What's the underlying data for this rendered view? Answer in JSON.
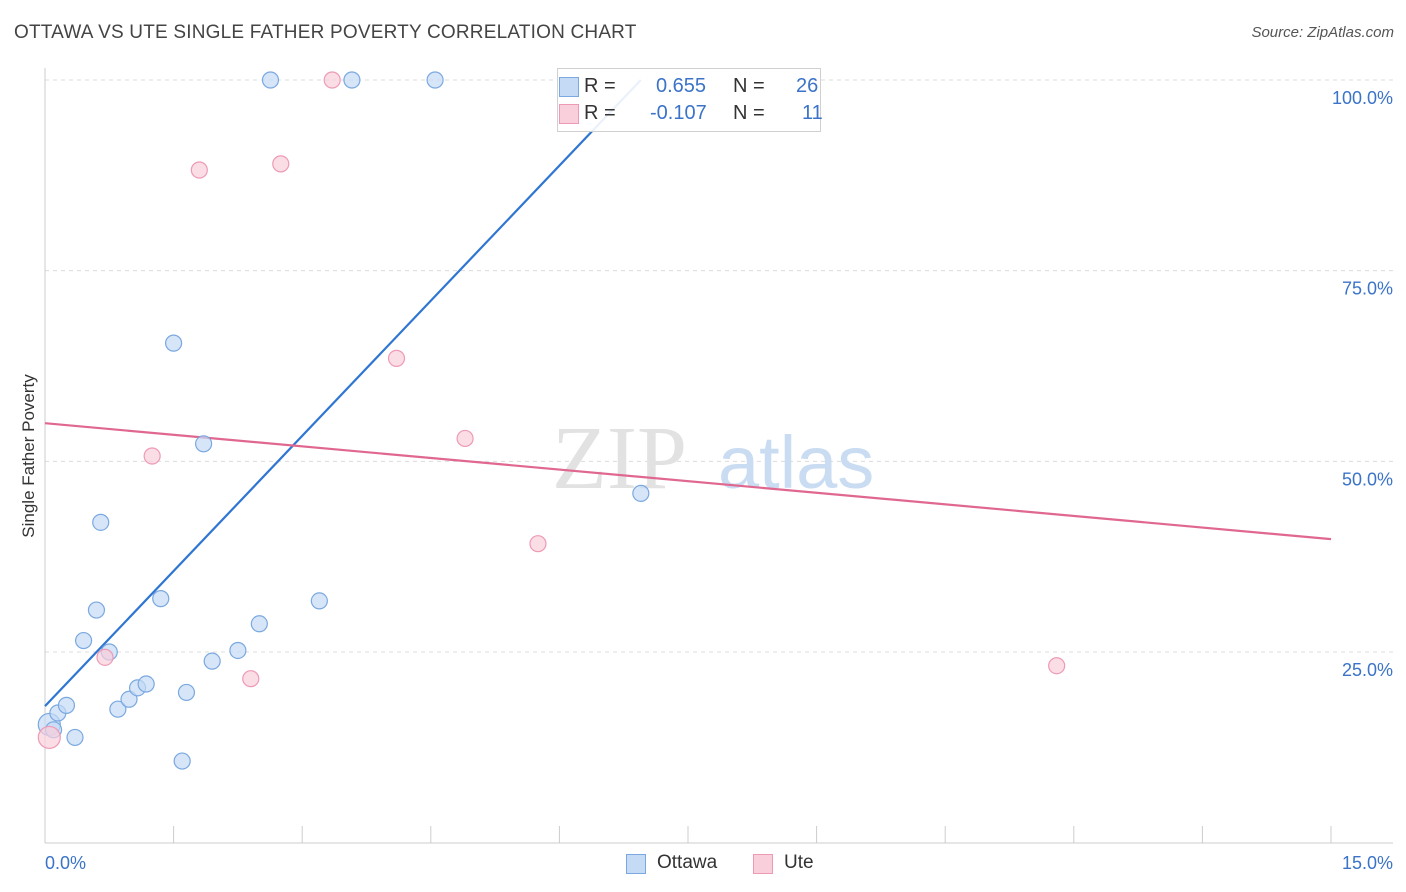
{
  "title": "OTTAWA VS UTE SINGLE FATHER POVERTY CORRELATION CHART",
  "source": "Source: ZipAtlas.com",
  "watermark": {
    "zip": "ZIP",
    "atlas": "atlas"
  },
  "colors": {
    "ottawa_fill": "#c5daf5",
    "ottawa_stroke": "#7aa8e0",
    "ottawa_line": "#2f76d2",
    "ute_fill": "#f9cfdc",
    "ute_stroke": "#ee9ab5",
    "ute_line": "#e0678f",
    "axis_text": "#3b73c8",
    "grid": "#dcdcdc"
  },
  "legend": {
    "rows": [
      {
        "r_label": "R =",
        "r_value": "0.655",
        "n_label": "N =",
        "n_value": "26"
      },
      {
        "r_label": "R =",
        "r_value": "-0.107",
        "n_label": "N =",
        "n_value": "11"
      }
    ]
  },
  "bottom_legend": {
    "ottawa": "Ottawa",
    "ute": "Ute"
  },
  "chart_data": {
    "type": "scatter",
    "title": "OTTAWA VS UTE SINGLE FATHER POVERTY CORRELATION CHART",
    "xlabel": "",
    "ylabel": "Single Father Poverty",
    "xlim": [
      0,
      15
    ],
    "ylim": [
      0,
      105
    ],
    "x_tick_labels": [
      "0.0%",
      "15.0%"
    ],
    "y_ticks": [
      25,
      50,
      75,
      100
    ],
    "y_tick_labels": [
      "25.0%",
      "50.0%",
      "75.0%",
      "100.0%"
    ],
    "grid": true,
    "legend_position": "top-center",
    "series": [
      {
        "name": "Ottawa",
        "points": [
          [
            0.05,
            15.5
          ],
          [
            0.1,
            14.8
          ],
          [
            0.15,
            17.0
          ],
          [
            0.25,
            18.0
          ],
          [
            0.35,
            13.8
          ],
          [
            0.45,
            26.5
          ],
          [
            0.6,
            30.5
          ],
          [
            0.65,
            42.0
          ],
          [
            0.75,
            25.0
          ],
          [
            0.85,
            17.5
          ],
          [
            0.98,
            18.8
          ],
          [
            1.08,
            20.3
          ],
          [
            1.18,
            20.8
          ],
          [
            1.35,
            32.0
          ],
          [
            1.5,
            65.5
          ],
          [
            1.6,
            10.7
          ],
          [
            1.65,
            19.7
          ],
          [
            1.85,
            52.3
          ],
          [
            1.95,
            23.8
          ],
          [
            2.25,
            25.2
          ],
          [
            2.5,
            28.7
          ],
          [
            2.63,
            100.0
          ],
          [
            3.2,
            31.7
          ],
          [
            3.58,
            100.0
          ],
          [
            4.55,
            100.0
          ],
          [
            6.95,
            45.8
          ]
        ],
        "trend": {
          "x": [
            0.0,
            6.95
          ],
          "y": [
            17.9,
            100.0
          ]
        }
      },
      {
        "name": "Ute",
        "points": [
          [
            0.05,
            13.8
          ],
          [
            0.7,
            24.3
          ],
          [
            1.25,
            50.7
          ],
          [
            1.8,
            88.2
          ],
          [
            2.4,
            21.5
          ],
          [
            2.75,
            89.0
          ],
          [
            3.35,
            100.0
          ],
          [
            4.1,
            63.5
          ],
          [
            4.9,
            53.0
          ],
          [
            5.75,
            39.2
          ],
          [
            11.8,
            23.2
          ]
        ],
        "trend": {
          "x": [
            0.0,
            15.0
          ],
          "y": [
            55.0,
            39.8
          ]
        }
      }
    ]
  }
}
